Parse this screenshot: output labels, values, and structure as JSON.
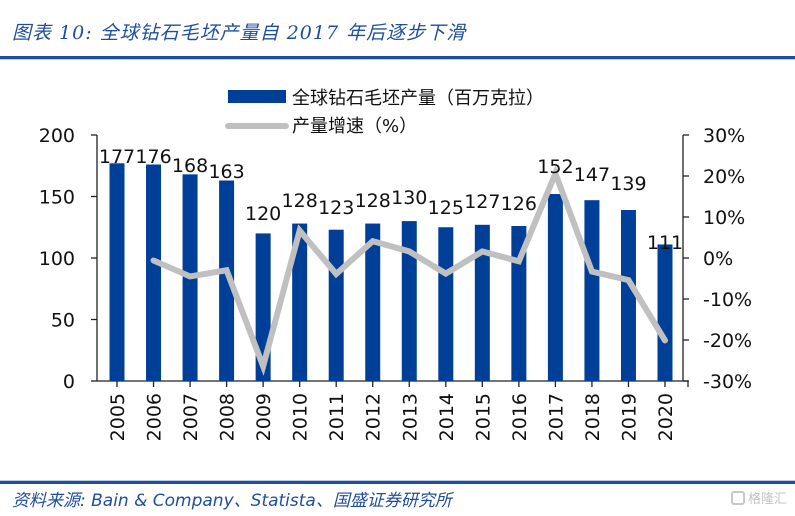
{
  "header": {
    "title": "图表 10:  全球钻石毛坯产量自 2017 年后逐步下滑"
  },
  "footer": {
    "source": "资料来源:  Bain & Company、Statista、国盛证券研究所",
    "watermark": "格隆汇",
    "watermark_icon": "gelonghui-logo-icon"
  },
  "colors": {
    "bar": "#003f98",
    "line": "#c0c0c0",
    "title": "#1f4e9c",
    "rule": "#1f4e9c"
  },
  "chart_data": {
    "type": "bar+line",
    "title": "全球钻石毛坯产量自 2017 年后逐步下滑",
    "categories": [
      "2005",
      "2006",
      "2007",
      "2008",
      "2009",
      "2010",
      "2011",
      "2012",
      "2013",
      "2014",
      "2015",
      "2016",
      "2017",
      "2018",
      "2019",
      "2020"
    ],
    "series": [
      {
        "name": "全球钻石毛坯产量（百万克拉）",
        "type": "bar",
        "axis": "left",
        "values": [
          177,
          176,
          168,
          163,
          120,
          128,
          123,
          128,
          130,
          125,
          127,
          126,
          152,
          147,
          139,
          111
        ],
        "data_labels": [
          "177",
          "176",
          "168",
          "163",
          "120",
          "128",
          "123",
          "128",
          "130",
          "125",
          "127",
          "126",
          "152",
          "147",
          "139",
          "111"
        ]
      },
      {
        "name": "产量增速（%）",
        "type": "line",
        "axis": "right",
        "values": [
          null,
          -0.6,
          -4.5,
          -3.0,
          -26.4,
          6.7,
          -3.9,
          4.1,
          1.6,
          -3.8,
          1.6,
          -0.8,
          20.6,
          -3.3,
          -5.4,
          -20.1
        ]
      }
    ],
    "left_axis": {
      "min": 0,
      "max": 200,
      "ticks": [
        "0",
        "50",
        "100",
        "150",
        "200"
      ]
    },
    "right_axis": {
      "min": -30,
      "max": 30,
      "ticks": [
        "-30%",
        "-20%",
        "-10%",
        "0%",
        "10%",
        "20%",
        "30%"
      ]
    },
    "legend": {
      "position": "top",
      "entries": [
        "全球钻石毛坯产量（百万克拉）",
        "产量增速（%）"
      ]
    },
    "grid": false
  }
}
